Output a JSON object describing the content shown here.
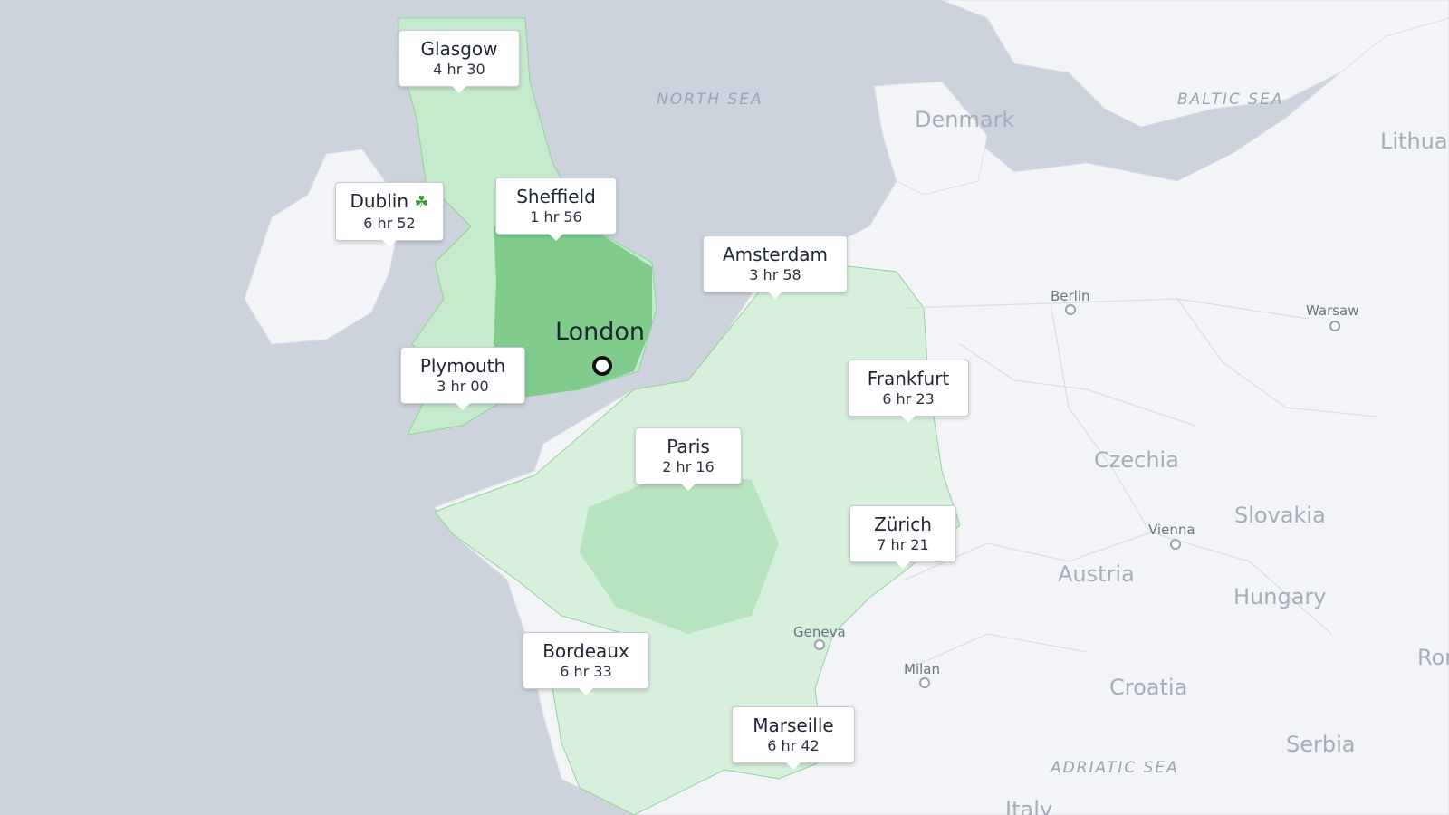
{
  "map": {
    "origin": {
      "name": "London"
    },
    "colors": {
      "sea": "#cdd3dd",
      "land": "#f3f4f7",
      "reach_light": "#dff3e2",
      "reach_mid": "#b8e3bf",
      "reach_dark": "#7fcc8d",
      "accent": "#111111"
    },
    "seas": [
      {
        "id": "north-sea",
        "label": "NORTH SEA"
      },
      {
        "id": "baltic-sea",
        "label": "BALTIC SEA"
      },
      {
        "id": "adriatic-sea",
        "label": "ADRIATIC SEA"
      }
    ],
    "countries": [
      {
        "id": "denmark",
        "label": "Denmark"
      },
      {
        "id": "czechia",
        "label": "Czechia"
      },
      {
        "id": "slovakia",
        "label": "Slovakia"
      },
      {
        "id": "austria",
        "label": "Austria"
      },
      {
        "id": "hungary",
        "label": "Hungary"
      },
      {
        "id": "croatia",
        "label": "Croatia"
      },
      {
        "id": "serbia",
        "label": "Serbia"
      },
      {
        "id": "lithuania",
        "label": "Lithua"
      },
      {
        "id": "romania",
        "label": "Ror"
      },
      {
        "id": "italy",
        "label": "Italy"
      }
    ],
    "cities": [
      {
        "id": "berlin",
        "label": "Berlin"
      },
      {
        "id": "warsaw",
        "label": "Warsaw"
      },
      {
        "id": "vienna",
        "label": "Vienna"
      },
      {
        "id": "geneva",
        "label": "Geneva"
      },
      {
        "id": "milan",
        "label": "Milan"
      }
    ],
    "destinations": [
      {
        "id": "glasgow",
        "name": "Glasgow",
        "time": "4 hr 30"
      },
      {
        "id": "dublin",
        "name": "Dublin",
        "time": "6 hr 52",
        "icon": "shamrock-icon"
      },
      {
        "id": "sheffield",
        "name": "Sheffield",
        "time": "1 hr 56"
      },
      {
        "id": "amsterdam",
        "name": "Amsterdam",
        "time": "3 hr 58"
      },
      {
        "id": "plymouth",
        "name": "Plymouth",
        "time": "3 hr 00"
      },
      {
        "id": "frankfurt",
        "name": "Frankfurt",
        "time": "6 hr 23"
      },
      {
        "id": "paris",
        "name": "Paris",
        "time": "2 hr 16"
      },
      {
        "id": "zurich",
        "name": "Zürich",
        "time": "7 hr 21"
      },
      {
        "id": "bordeaux",
        "name": "Bordeaux",
        "time": "6 hr 33"
      },
      {
        "id": "marseille",
        "name": "Marseille",
        "time": "6 hr 42"
      }
    ]
  }
}
